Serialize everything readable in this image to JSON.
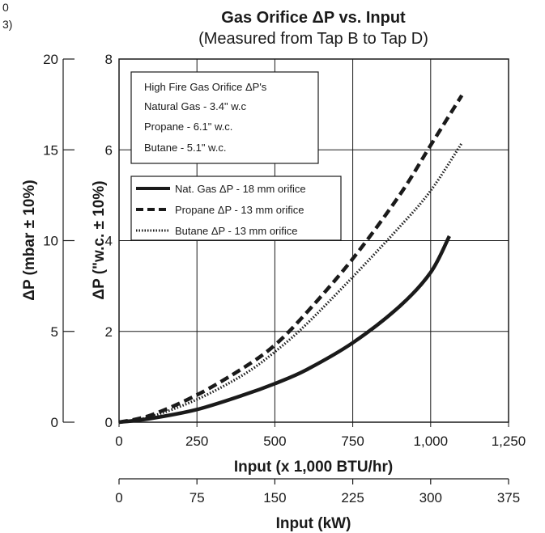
{
  "corner_fragment": [
    "0",
    "3)"
  ],
  "chart_data": {
    "type": "line",
    "title": "Gas Orifice ΔP vs. Input",
    "subtitle": "(Measured from Tap B to Tap D)",
    "xlabel": "Input (x 1,000 BTU/hr)",
    "ylabel": "ΔP (\"w.c. ± 10%)",
    "xlim": [
      0,
      1250
    ],
    "ylim": [
      0,
      8
    ],
    "x_ticks": [
      "0",
      "250",
      "500",
      "750",
      "1,000",
      "1,250"
    ],
    "y_ticks": [
      "0",
      "2",
      "4",
      "6",
      "8"
    ],
    "grid": true,
    "secondary_x": {
      "label": "Input (kW)",
      "lim": [
        0,
        375
      ],
      "ticks": [
        "0",
        "75",
        "150",
        "225",
        "300",
        "375"
      ]
    },
    "secondary_y": {
      "label": "ΔP (mbar ± 10%)",
      "lim": [
        0,
        20
      ],
      "ticks": [
        "0",
        "5",
        "10",
        "15",
        "20"
      ]
    },
    "info_box": {
      "lines": [
        "High Fire Gas Orifice ΔP's",
        "Natural Gas - 3.4\" w.c",
        "Propane - 6.1\" w.c.",
        "Butane - 5.1\" w.c."
      ]
    },
    "legend_position": "top-left",
    "series": [
      {
        "name": "Nat. Gas ΔP - 18 mm orifice",
        "style": "solid",
        "color": "#1a1a1a",
        "x": [
          0,
          100,
          250,
          400,
          500,
          600,
          750,
          900,
          1000,
          1060
        ],
        "y": [
          0,
          0.08,
          0.28,
          0.6,
          0.85,
          1.15,
          1.75,
          2.55,
          3.3,
          4.1
        ]
      },
      {
        "name": "Propane ΔP - 13 mm orifice",
        "style": "dashed",
        "color": "#1a1a1a",
        "x": [
          0,
          100,
          250,
          400,
          500,
          600,
          750,
          900,
          1000,
          1100
        ],
        "y": [
          0,
          0.15,
          0.6,
          1.2,
          1.7,
          2.4,
          3.6,
          5.0,
          6.1,
          7.2
        ]
      },
      {
        "name": "Butane ΔP - 13 mm orifice",
        "style": "dotted",
        "color": "#1a1a1a",
        "x": [
          0,
          100,
          250,
          400,
          500,
          600,
          750,
          900,
          1000,
          1100
        ],
        "y": [
          0,
          0.12,
          0.5,
          1.05,
          1.55,
          2.15,
          3.2,
          4.3,
          5.1,
          6.15
        ]
      }
    ]
  }
}
